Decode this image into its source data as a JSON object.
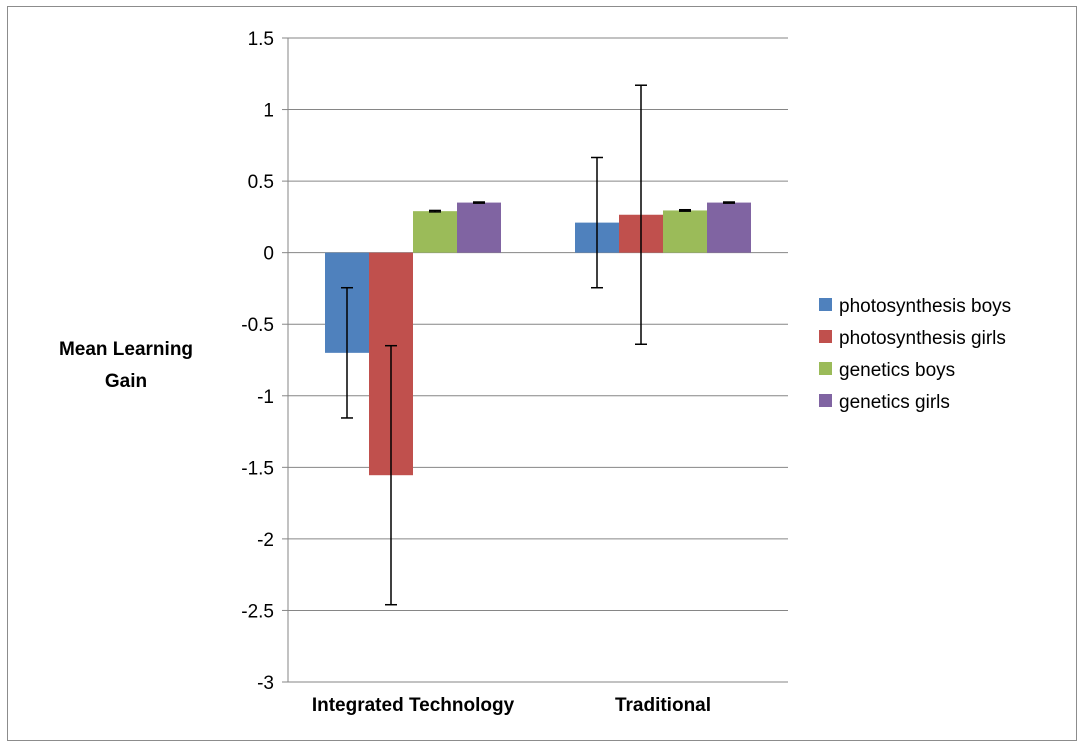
{
  "chart_data": {
    "type": "bar",
    "title": "",
    "xlabel": "",
    "ylabel": "Mean Learning Gain",
    "ylabel_lines": [
      "Mean Learning",
      "Gain"
    ],
    "ylim": [
      -3,
      1.5
    ],
    "yticks": [
      1.5,
      1,
      0.5,
      0,
      -0.5,
      -1,
      -1.5,
      -2,
      -2.5,
      -3
    ],
    "ytick_labels": [
      "1.5",
      "1",
      "0.5",
      "0",
      "-0.5",
      "-1",
      "-1.5",
      "-2",
      "-2.5",
      "-3"
    ],
    "grid": true,
    "legend_position": "right",
    "categories": [
      "Integrated Technology",
      "Traditional"
    ],
    "series": [
      {
        "name": "photosynthesis boys",
        "color": "#4F81BD",
        "values": [
          -0.7,
          0.21
        ],
        "error": [
          0.455,
          0.455
        ]
      },
      {
        "name": "photosynthesis girls",
        "color": "#C0504D",
        "values": [
          -1.555,
          0.265
        ],
        "error": [
          0.905,
          0.905
        ]
      },
      {
        "name": "genetics boys",
        "color": "#9BBB59",
        "values": [
          0.29,
          0.295
        ],
        "error": [
          0.005,
          0.005
        ]
      },
      {
        "name": "genetics girls",
        "color": "#8064A2",
        "values": [
          0.35,
          0.35
        ],
        "error": [
          0.004,
          0.004
        ]
      }
    ]
  }
}
